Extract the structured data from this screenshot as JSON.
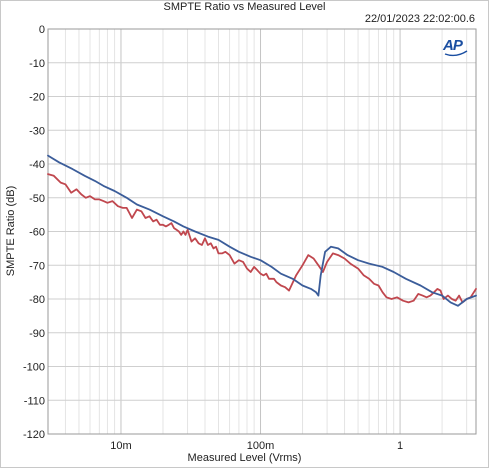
{
  "chart_data": {
    "type": "line",
    "title": "SMPTE Ratio vs Measured Level",
    "timestamp": "22/01/2023 22:02:00.6",
    "xlabel": "Measured Level (Vrms)",
    "ylabel": "SMPTE Ratio (dB)",
    "xscale": "log",
    "xlim": [
      0.003,
      3.5
    ],
    "ylim": [
      -120,
      0
    ],
    "grid": true,
    "x_ticks": [
      {
        "value": 0.01,
        "label": "10m"
      },
      {
        "value": 0.1,
        "label": "100m"
      },
      {
        "value": 1,
        "label": "1"
      }
    ],
    "y_ticks": [
      0,
      -10,
      -20,
      -30,
      -40,
      -50,
      -60,
      -70,
      -80,
      -90,
      -100,
      -110,
      -120
    ],
    "series": [
      {
        "color": "#3b5d9a",
        "x": [
          0.003,
          0.0036,
          0.0045,
          0.0055,
          0.0065,
          0.0075,
          0.009,
          0.011,
          0.013,
          0.016,
          0.02,
          0.024,
          0.028,
          0.034,
          0.042,
          0.05,
          0.06,
          0.07,
          0.085,
          0.1,
          0.12,
          0.14,
          0.17,
          0.2,
          0.23,
          0.25,
          0.26,
          0.27,
          0.29,
          0.32,
          0.36,
          0.42,
          0.5,
          0.6,
          0.75,
          0.9,
          1.1,
          1.4,
          1.7,
          2.0,
          2.3,
          2.6,
          3.0,
          3.5
        ],
        "values": [
          -37.5,
          -39.5,
          -41.5,
          -43.5,
          -45,
          -46.5,
          -48,
          -50,
          -52,
          -53.5,
          -55.5,
          -57,
          -58.5,
          -60,
          -61.5,
          -62.5,
          -64.5,
          -66,
          -67.5,
          -68.5,
          -70.5,
          -72.5,
          -74,
          -76,
          -77,
          -78,
          -79,
          -73,
          -66,
          -64.5,
          -65,
          -67,
          -68.5,
          -69.5,
          -70.5,
          -72,
          -74,
          -76,
          -78,
          -79,
          -81,
          -82,
          -80,
          -79
        ]
      },
      {
        "color": "#c0474e",
        "x": [
          0.003,
          0.0033,
          0.0037,
          0.004,
          0.0044,
          0.0048,
          0.0052,
          0.0056,
          0.006,
          0.0065,
          0.007,
          0.0075,
          0.008,
          0.0087,
          0.0095,
          0.0103,
          0.011,
          0.012,
          0.013,
          0.014,
          0.015,
          0.016,
          0.017,
          0.018,
          0.019,
          0.02,
          0.021,
          0.022,
          0.023,
          0.024,
          0.025,
          0.026,
          0.027,
          0.028,
          0.029,
          0.03,
          0.032,
          0.034,
          0.036,
          0.038,
          0.04,
          0.042,
          0.044,
          0.046,
          0.048,
          0.05,
          0.053,
          0.056,
          0.06,
          0.065,
          0.07,
          0.075,
          0.08,
          0.085,
          0.09,
          0.095,
          0.1,
          0.105,
          0.11,
          0.115,
          0.12,
          0.125,
          0.13,
          0.14,
          0.15,
          0.16,
          0.18,
          0.2,
          0.22,
          0.24,
          0.26,
          0.28,
          0.3,
          0.33,
          0.36,
          0.4,
          0.44,
          0.5,
          0.55,
          0.6,
          0.65,
          0.7,
          0.75,
          0.8,
          0.87,
          0.95,
          1.05,
          1.15,
          1.25,
          1.35,
          1.45,
          1.55,
          1.65,
          1.75,
          1.85,
          1.95,
          2.05,
          2.2,
          2.35,
          2.5,
          2.65,
          2.8,
          3.0,
          3.2,
          3.5
        ],
        "values": [
          -43,
          -43.5,
          -45.5,
          -46,
          -48.5,
          -47.5,
          -49,
          -50,
          -49.5,
          -50.5,
          -50.5,
          -51,
          -51.5,
          -51,
          -52.5,
          -53,
          -53,
          -56,
          -53.5,
          -54,
          -56,
          -55.5,
          -57,
          -56.5,
          -58,
          -58,
          -58.5,
          -58,
          -57.5,
          -59,
          -59.5,
          -60,
          -61,
          -60,
          -61,
          -59.5,
          -63,
          -62,
          -63.5,
          -64,
          -62,
          -64,
          -63.5,
          -65,
          -64.5,
          -66.5,
          -66.5,
          -66,
          -67,
          -69.5,
          -68.5,
          -69,
          -71,
          -72,
          -70.5,
          -71.5,
          -72.5,
          -73,
          -72.5,
          -74,
          -74,
          -74,
          -75,
          -76,
          -76.5,
          -77.5,
          -73,
          -70,
          -67,
          -68,
          -70,
          -72,
          -69,
          -66.5,
          -67,
          -68,
          -69.5,
          -71,
          -73,
          -74,
          -75.5,
          -76,
          -78,
          -79.5,
          -80,
          -79.5,
          -80.5,
          -81,
          -80.5,
          -78.5,
          -79,
          -79.5,
          -79,
          -78,
          -77,
          -77.5,
          -80,
          -79,
          -80,
          -80.5,
          -79,
          -81,
          -80,
          -79.5,
          -77
        ]
      }
    ]
  },
  "logo": "AP"
}
